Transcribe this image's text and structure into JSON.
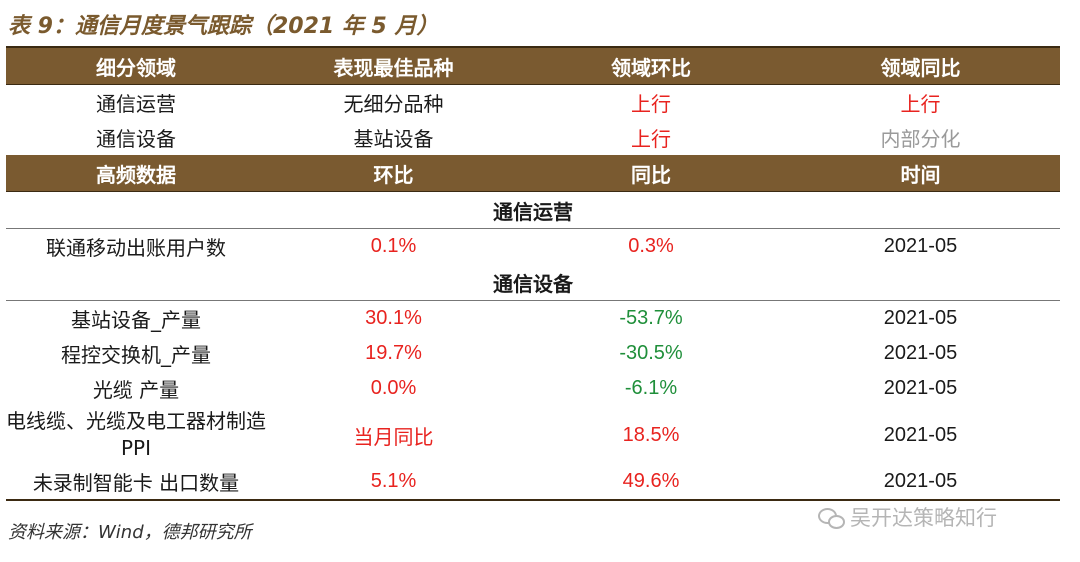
{
  "title": "表 9：通信月度景气跟踪（2021 年 5 月）",
  "table1": {
    "headers": [
      "细分领域",
      "表现最佳品种",
      "领域环比",
      "领域同比"
    ],
    "rows": [
      {
        "domain": "通信运营",
        "best": "无细分品种",
        "mom": "上行",
        "yoy": "上行"
      },
      {
        "domain": "通信设备",
        "best": "基站设备",
        "mom": "上行",
        "yoy": "内部分化"
      }
    ]
  },
  "table2": {
    "headers": [
      "高频数据",
      "环比",
      "同比",
      "时间"
    ],
    "sections": [
      {
        "name": "通信运营",
        "rows": [
          {
            "item": "联通移动出账用户数",
            "mom": "0.1%",
            "yoy": "0.3%",
            "time": "2021-05"
          }
        ]
      },
      {
        "name": "通信设备",
        "rows": [
          {
            "item": "基站设备_产量",
            "mom": "30.1%",
            "yoy": "-53.7%",
            "time": "2021-05"
          },
          {
            "item": "程控交换机_产量",
            "mom": "19.7%",
            "yoy": "-30.5%",
            "time": "2021-05"
          },
          {
            "item": "光缆 产量",
            "mom": "0.0%",
            "yoy": "-6.1%",
            "time": "2021-05"
          },
          {
            "item": "电线缆、光缆及电工器材制造 PPI",
            "mom": "当月同比",
            "yoy": "18.5%",
            "time": "2021-05"
          },
          {
            "item": "未录制智能卡 出口数量",
            "mom": "5.1%",
            "yoy": "49.6%",
            "time": "2021-05"
          }
        ]
      }
    ]
  },
  "source": "资料来源：Wind，德邦研究所",
  "watermark": "吴开达策略知行",
  "colors": {
    "header_bg": "#7a5a30",
    "up": "#e8231f",
    "down": "#1f8f3a",
    "neutral": "#9a9a9a"
  }
}
